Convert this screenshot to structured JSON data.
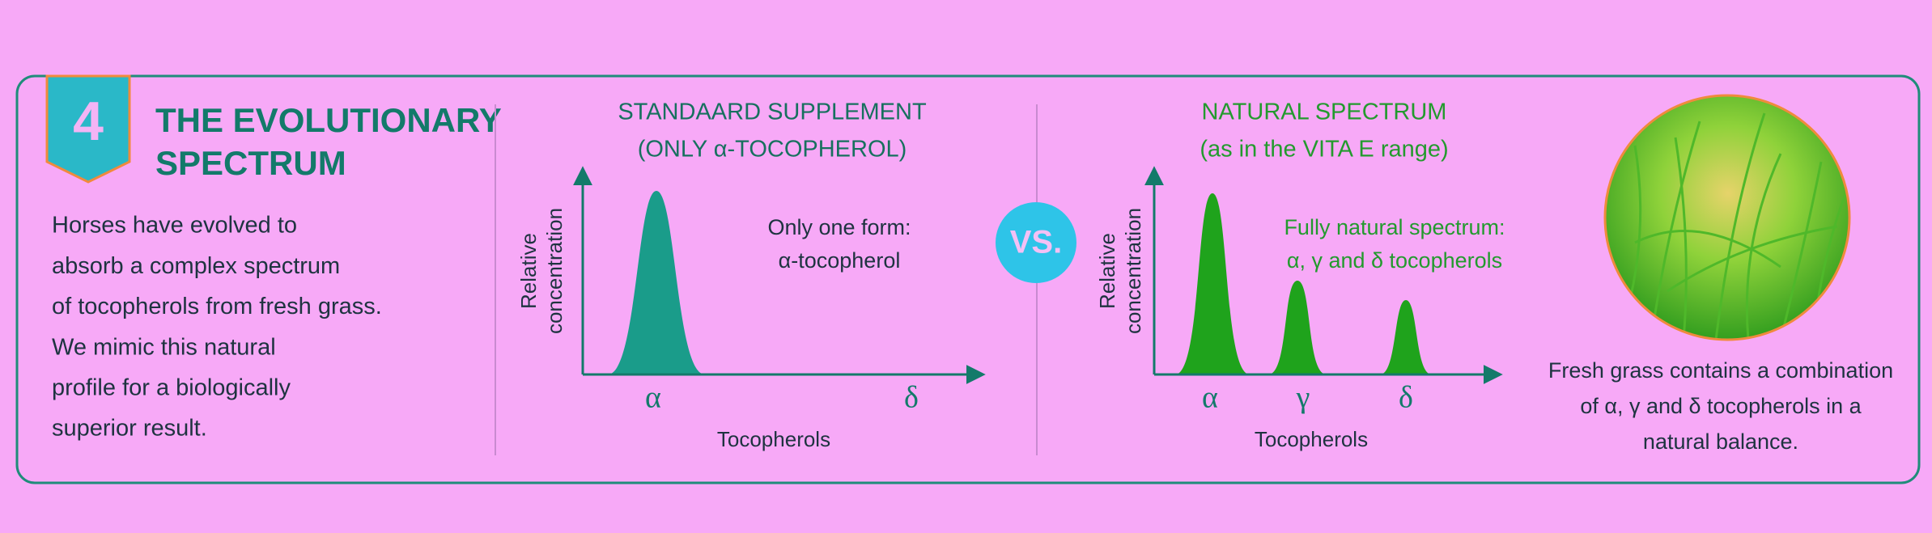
{
  "badge": "4",
  "header": {
    "title_lines": [
      "THE EVOLUTIONARY",
      "SPECTRUM"
    ]
  },
  "intro_lines": [
    "Horses have evolved to",
    "absorb a complex spectrum",
    "of tocopherols from fresh grass.",
    "We mimic this natural",
    "profile for a biologically",
    "superior result."
  ],
  "left_panel": {
    "title_lines": [
      "STANDAARD SUPPLEMENT",
      "(ONLY α-TOCOPHEROL)"
    ],
    "y_label_lines": [
      "Relative",
      "concentration"
    ],
    "x_label": "Tocopherols",
    "peak_labels": [
      "α",
      "δ"
    ],
    "annotation_lines": [
      "Only one form:",
      "α-tocopherol"
    ]
  },
  "versus": "VS.",
  "right_panel": {
    "title_lines": [
      "NATURAL SPECTRUM",
      "(as in the VITA E range)"
    ],
    "y_label_lines": [
      "Relative",
      "concentration"
    ],
    "x_label": "Tocopherols",
    "peak_labels": [
      "α",
      "γ",
      "δ"
    ],
    "annotation_lines": [
      "Fully natural spectrum:",
      "α, γ and δ tocopherols"
    ]
  },
  "caption_lines": [
    "Fresh grass contains a combination",
    "of α, γ and δ tocopherols in a",
    "natural balance."
  ]
}
